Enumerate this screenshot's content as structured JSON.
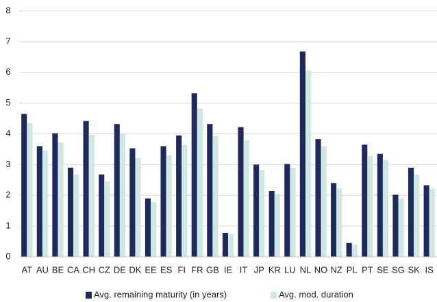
{
  "chart_data": {
    "type": "bar",
    "categories": [
      "AT",
      "AU",
      "BE",
      "CA",
      "CH",
      "CZ",
      "DE",
      "DK",
      "EE",
      "ES",
      "FI",
      "FR",
      "GB",
      "IE",
      "IT",
      "JP",
      "KR",
      "LU",
      "NL",
      "NO",
      "NZ",
      "PL",
      "PT",
      "SE",
      "SG",
      "SK",
      "IS"
    ],
    "series": [
      {
        "name": "Avg. remaining maturity (in years)",
        "color": "#1f2a5c",
        "values": [
          4.65,
          3.6,
          4.02,
          2.9,
          4.42,
          2.68,
          4.32,
          3.53,
          1.9,
          3.6,
          3.95,
          5.32,
          4.32,
          0.78,
          4.22,
          3.0,
          2.14,
          3.02,
          6.68,
          3.83,
          2.4,
          0.45,
          3.65,
          3.35,
          2.02,
          2.9,
          2.33
        ]
      },
      {
        "name": "Avg. mod. duration",
        "color": "#cfe8e3",
        "values": [
          4.35,
          3.45,
          3.72,
          2.68,
          3.97,
          2.45,
          4.0,
          3.22,
          1.78,
          3.3,
          3.65,
          4.83,
          3.93,
          0.74,
          3.8,
          2.83,
          2.05,
          2.9,
          6.07,
          3.6,
          2.23,
          0.4,
          3.3,
          3.15,
          1.9,
          2.68,
          2.22
        ]
      }
    ],
    "ylim": [
      0,
      8
    ],
    "yticks": [
      0,
      1,
      2,
      3,
      4,
      5,
      6,
      7,
      8
    ],
    "grid": true,
    "legend": "bottom"
  }
}
